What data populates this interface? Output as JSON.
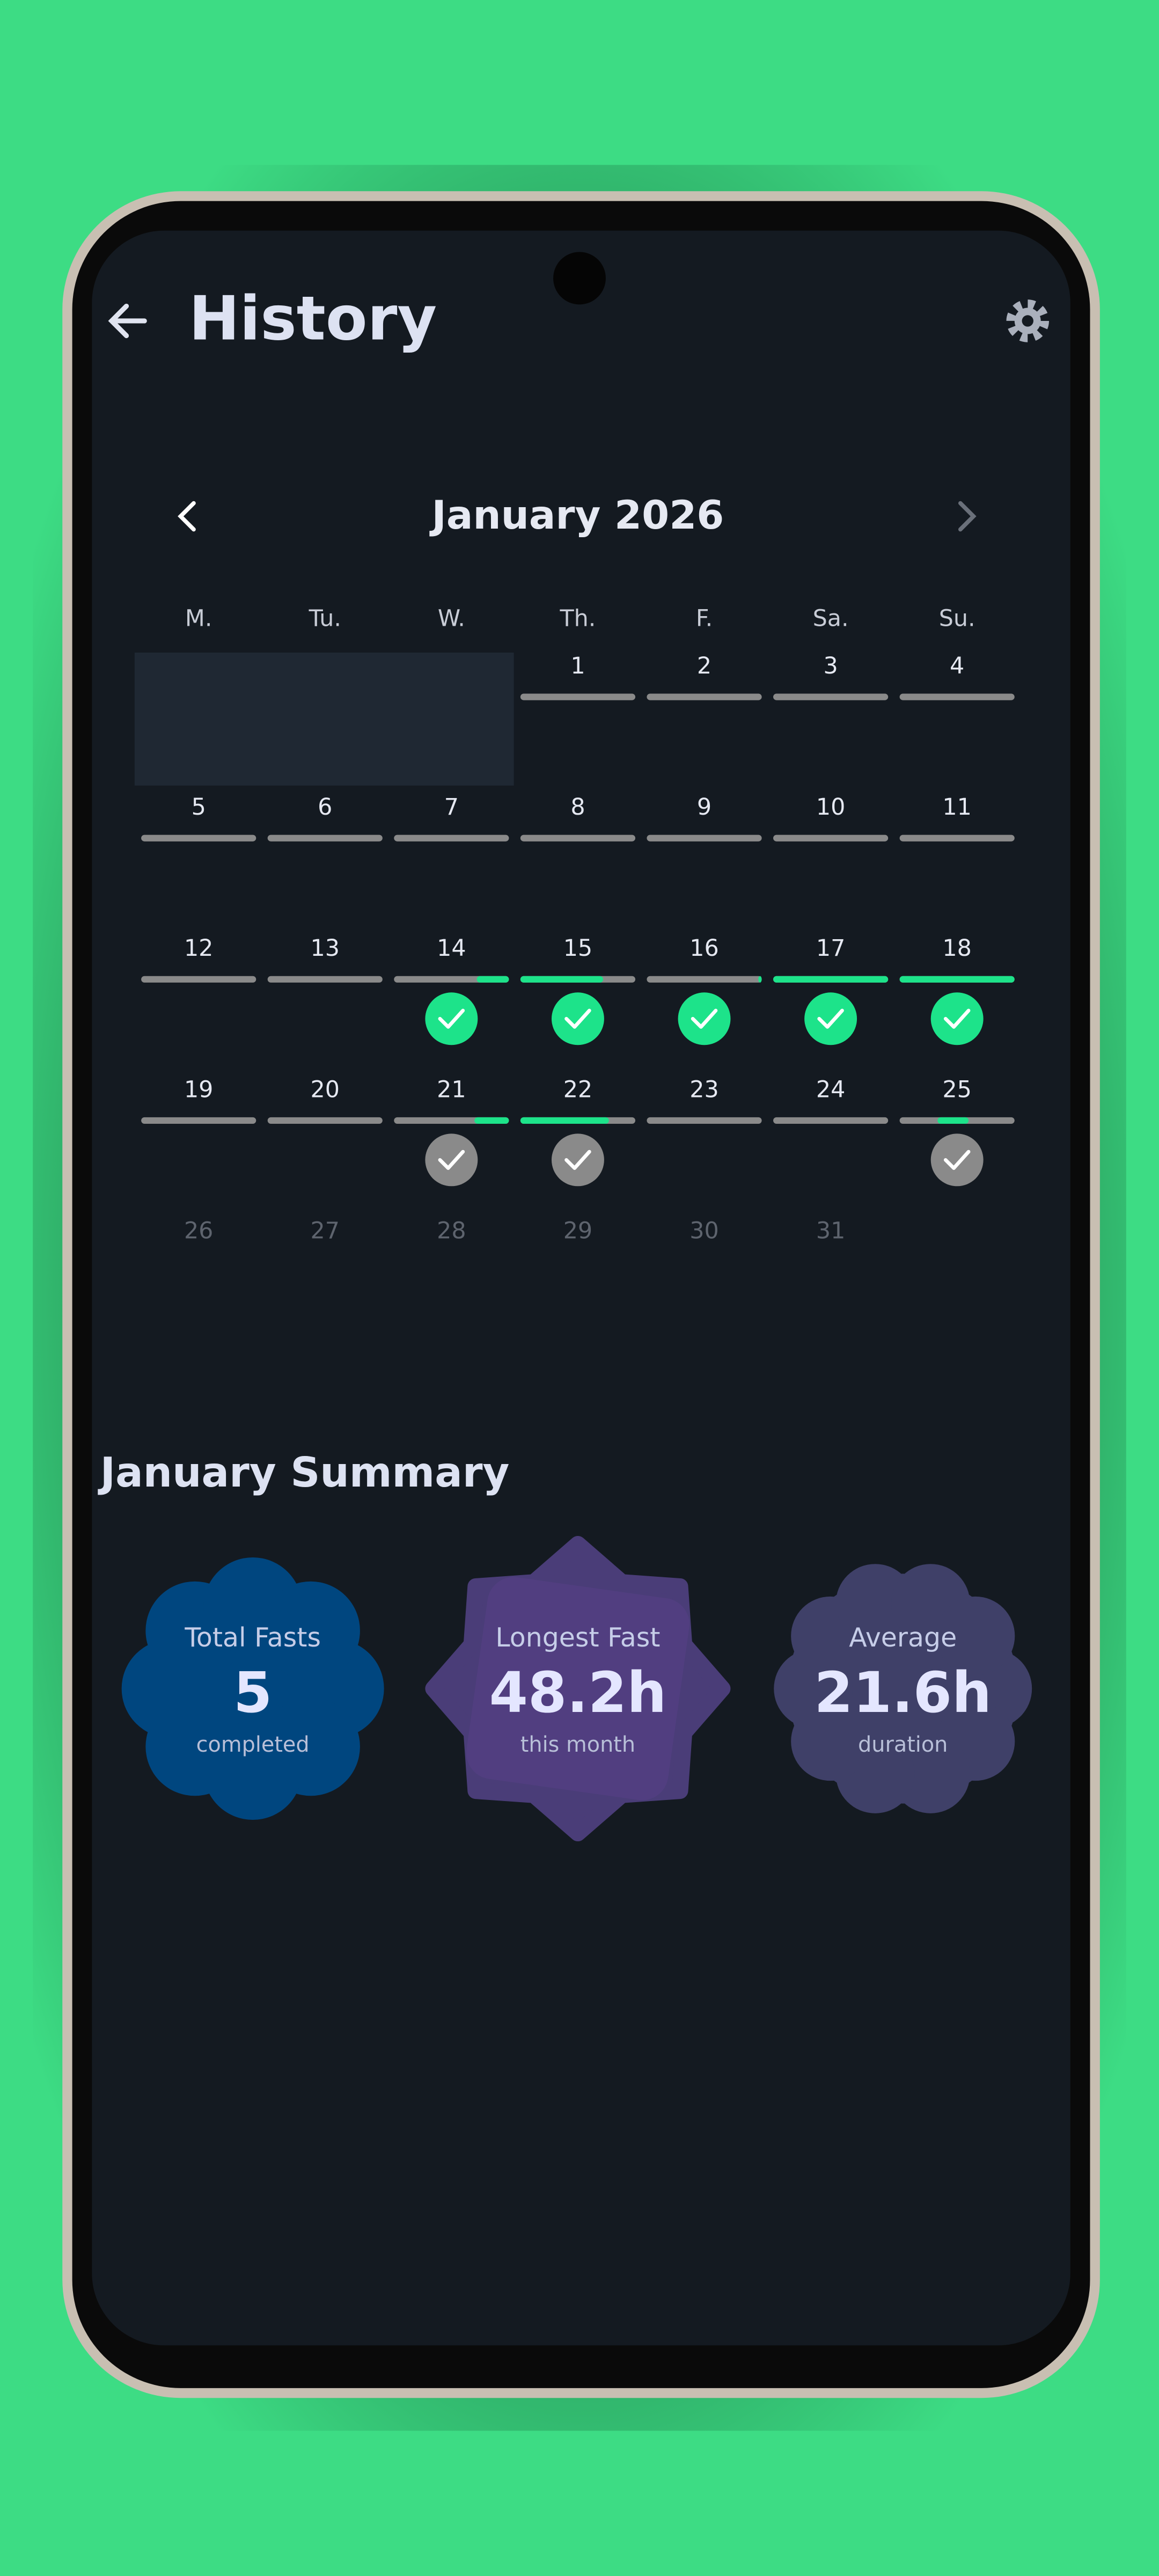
{
  "header": {
    "title": "History"
  },
  "calendar": {
    "month": "January 2026",
    "weekdays": [
      "M.",
      "Tu.",
      "W.",
      "Th.",
      "F.",
      "Sa.",
      "Su."
    ],
    "days": [
      "1",
      "2",
      "3",
      "4",
      "5",
      "6",
      "7",
      "8",
      "9",
      "10",
      "11",
      "12",
      "13",
      "14",
      "15",
      "16",
      "17",
      "18",
      "19",
      "20",
      "21",
      "22",
      "23",
      "24",
      "25",
      "26",
      "27",
      "28",
      "29",
      "30",
      "31"
    ]
  },
  "summary": {
    "title": "January Summary",
    "cards": [
      {
        "label": "Total Fasts",
        "value": "5",
        "caption": "completed"
      },
      {
        "label": "Longest Fast",
        "value": "48.2h",
        "caption": "this month"
      },
      {
        "label": "Average",
        "value": "21.6h",
        "caption": "duration"
      }
    ]
  }
}
